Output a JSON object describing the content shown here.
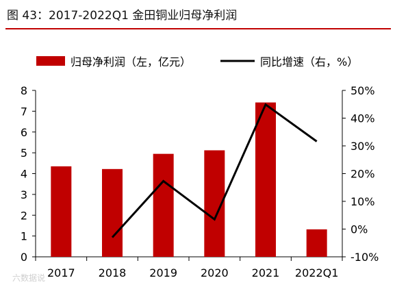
{
  "title": "图 43：2017-2022Q1 金田铜业归母净利润",
  "legend": {
    "bar_label": "归母净利润（左，亿元）",
    "line_label": "同比增速（右，%）"
  },
  "watermark": "六数据说",
  "colors": {
    "bar": "#c00000",
    "line": "#000000",
    "title_rule": "#c00000"
  },
  "chart_data": {
    "type": "bar",
    "categories": [
      "2017",
      "2018",
      "2019",
      "2020",
      "2021",
      "2022Q1"
    ],
    "series": [
      {
        "name": "归母净利润（左，亿元）",
        "type": "bar",
        "axis": "left",
        "values": [
          4.35,
          4.22,
          4.95,
          5.12,
          7.42,
          1.32
        ]
      },
      {
        "name": "同比增速（右，%）",
        "type": "line",
        "axis": "right",
        "values": [
          null,
          -3.0,
          17.3,
          3.5,
          44.9,
          31.6
        ]
      }
    ],
    "y_left": {
      "min": 0,
      "max": 8,
      "ticks": [
        "0",
        "1",
        "2",
        "3",
        "4",
        "5",
        "6",
        "7",
        "8"
      ]
    },
    "y_right": {
      "min": -10,
      "max": 50,
      "ticks": [
        "-10%",
        "0%",
        "10%",
        "20%",
        "30%",
        "40%",
        "50%"
      ]
    },
    "grid": false
  }
}
